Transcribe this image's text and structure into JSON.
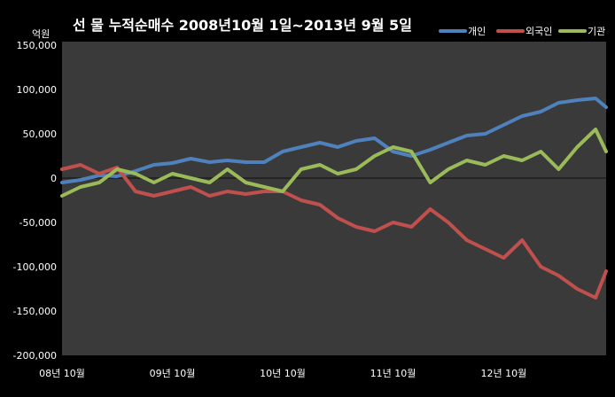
{
  "chart_data": {
    "type": "line",
    "title": "선 물 누적순매수 2008년10월 1일~2013년 9월 5일",
    "ylabel": "억원",
    "xlabel": "",
    "ylim": [
      -200000,
      150000
    ],
    "yticks": [
      150000,
      100000,
      50000,
      0,
      -50000,
      -100000,
      -150000,
      -200000
    ],
    "ytick_labels": [
      "150,000",
      "100,000",
      "50,000",
      "0",
      "-50,000",
      "-100,000",
      "-150,000",
      "-200,000"
    ],
    "x_start": "2008-10-01",
    "x_end": "2013-09-05",
    "xticks": [
      "2008-10-01",
      "2009-10-01",
      "2010-10-01",
      "2011-10-01",
      "2012-10-01"
    ],
    "xtick_labels": [
      "08년 10월",
      "09년 10월",
      "10년 10월",
      "11년 10월",
      "12년 10월"
    ],
    "legend_position": "top-right",
    "grid": false,
    "x": [
      "2008-10-01",
      "2008-12-01",
      "2009-02-01",
      "2009-04-01",
      "2009-06-01",
      "2009-08-01",
      "2009-10-01",
      "2009-12-01",
      "2010-02-01",
      "2010-04-01",
      "2010-06-01",
      "2010-08-01",
      "2010-10-01",
      "2010-12-01",
      "2011-02-01",
      "2011-04-01",
      "2011-06-01",
      "2011-08-01",
      "2011-10-01",
      "2011-12-01",
      "2012-02-01",
      "2012-04-01",
      "2012-06-01",
      "2012-08-01",
      "2012-10-01",
      "2012-12-01",
      "2013-02-01",
      "2013-04-01",
      "2013-06-01",
      "2013-08-01",
      "2013-09-05"
    ],
    "series": [
      {
        "name": "개인",
        "color": "#4F81BD",
        "values": [
          -5000,
          -2000,
          3000,
          2000,
          8000,
          15000,
          17000,
          22000,
          18000,
          20000,
          18000,
          18000,
          30000,
          35000,
          40000,
          35000,
          42000,
          45000,
          30000,
          25000,
          32000,
          40000,
          48000,
          50000,
          60000,
          70000,
          75000,
          85000,
          88000,
          90000,
          80000
        ]
      },
      {
        "name": "외국인",
        "color": "#C0504D",
        "values": [
          10000,
          15000,
          5000,
          12000,
          -15000,
          -20000,
          -15000,
          -10000,
          -20000,
          -15000,
          -18000,
          -15000,
          -15000,
          -25000,
          -30000,
          -45000,
          -55000,
          -60000,
          -50000,
          -55000,
          -35000,
          -50000,
          -70000,
          -80000,
          -90000,
          -70000,
          -100000,
          -110000,
          -125000,
          -135000,
          -105000
        ]
      },
      {
        "name": "기관",
        "color": "#9BBB59",
        "values": [
          -20000,
          -10000,
          -5000,
          10000,
          5000,
          -5000,
          5000,
          0,
          -5000,
          10000,
          -5000,
          -10000,
          -15000,
          10000,
          15000,
          5000,
          10000,
          25000,
          35000,
          30000,
          -5000,
          10000,
          20000,
          15000,
          25000,
          20000,
          30000,
          10000,
          35000,
          55000,
          30000
        ]
      }
    ]
  }
}
